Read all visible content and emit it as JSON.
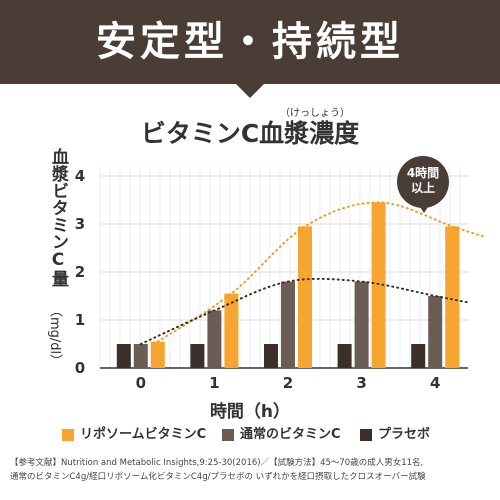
{
  "banner": {
    "title": "安定型・持続型"
  },
  "chart_data": {
    "type": "bar",
    "title": "ビタミンC血漿濃度",
    "title_ruby": "（けっしょう）",
    "xlabel": "時間（h）",
    "ylabel": "血漿ビタミンC量",
    "ylabel_unit": "（mg/dl）",
    "categories": [
      "0",
      "1",
      "2",
      "3",
      "4"
    ],
    "ylim": [
      0,
      4
    ],
    "yticks": [
      "0",
      "1",
      "2",
      "3",
      "4"
    ],
    "grid": true,
    "legend_position": "bottom",
    "series": [
      {
        "name": "リポソームビタミンC",
        "color": "#f7a531",
        "values": [
          0.55,
          1.55,
          2.95,
          3.45,
          2.95
        ]
      },
      {
        "name": "通常のビタミンC",
        "color": "#6b5d55",
        "values": [
          0.5,
          1.2,
          1.8,
          1.8,
          1.5
        ]
      },
      {
        "name": "プラセボ",
        "color": "#3b2f2a",
        "values": [
          0.5,
          0.5,
          0.5,
          0.5,
          0.5
        ]
      }
    ],
    "annotations": {
      "badge_line1": "4時間",
      "badge_line2": "以上"
    }
  },
  "footnote": {
    "line1": "【参考文献】Nutrition and Metabolic Insights,9:25-30(2016)／【試験方法】45～70歳の成人男女11名,",
    "line2": "通常のビタミンC4g/経口リポソーム化ビタミンC4g/プラセボの いずれかを経口摂取したクロスオーバー試験"
  }
}
